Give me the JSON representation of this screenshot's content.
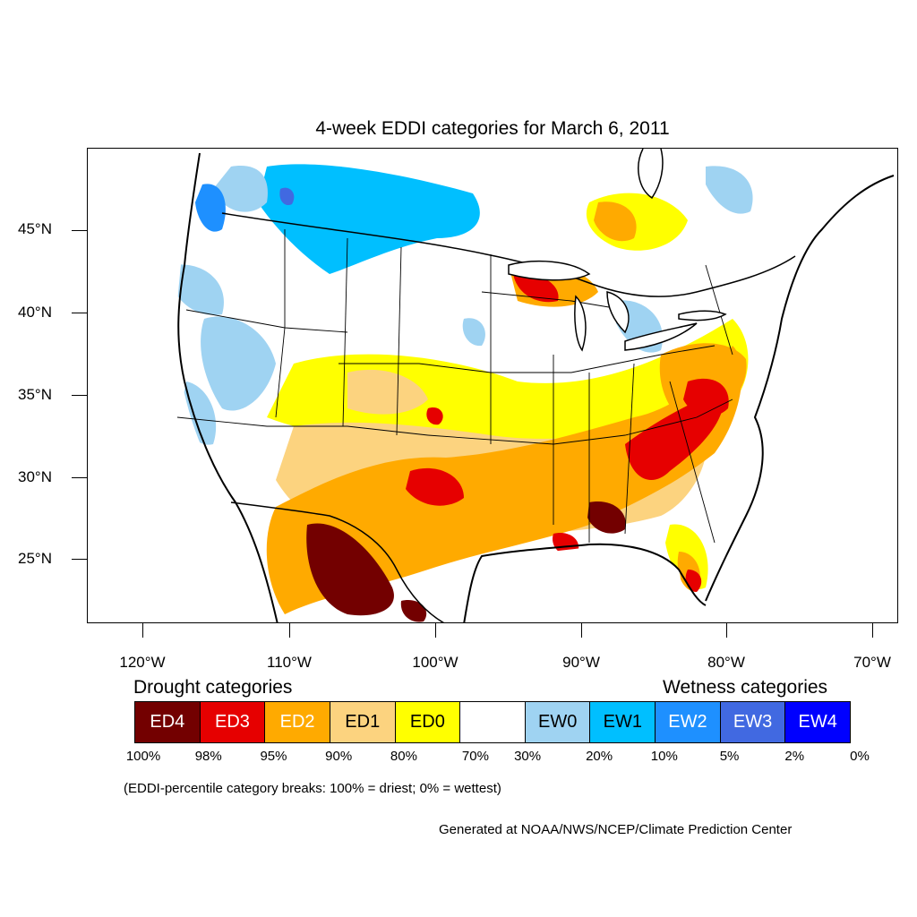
{
  "title": "4-week EDDI categories for March 6, 2011",
  "latitude_labels": [
    "45°N",
    "40°N",
    "35°N",
    "30°N",
    "25°N"
  ],
  "longitude_labels": [
    "120°W",
    "110°W",
    "100°W",
    "90°W",
    "80°W",
    "70°W"
  ],
  "legend": {
    "drought_heading": "Drought categories",
    "wetness_heading": "Wetness categories",
    "categories": [
      {
        "label": "ED4",
        "color": "#730000"
      },
      {
        "label": "ED3",
        "color": "#e60000"
      },
      {
        "label": "ED2",
        "color": "#ffaa00"
      },
      {
        "label": "ED1",
        "color": "#fcd37f"
      },
      {
        "label": "ED0",
        "color": "#ffff00"
      },
      {
        "label": "",
        "color": "#ffffff"
      },
      {
        "label": "EW0",
        "color": "#9fd3f2"
      },
      {
        "label": "EW1",
        "color": "#00bfff"
      },
      {
        "label": "EW2",
        "color": "#1e90ff"
      },
      {
        "label": "EW3",
        "color": "#4169e1"
      },
      {
        "label": "EW4",
        "color": "#0000ff"
      }
    ],
    "percentiles": [
      "100%",
      "98%",
      "95%",
      "90%",
      "80%",
      "70%",
      "30%",
      "20%",
      "10%",
      "5%",
      "2%",
      "0%"
    ]
  },
  "breaks_note": "(EDDI-percentile category breaks: 100% = driest; 0% = wettest)",
  "credit": "Generated at NOAA/NWS/NCEP/Climate Prediction Center"
}
